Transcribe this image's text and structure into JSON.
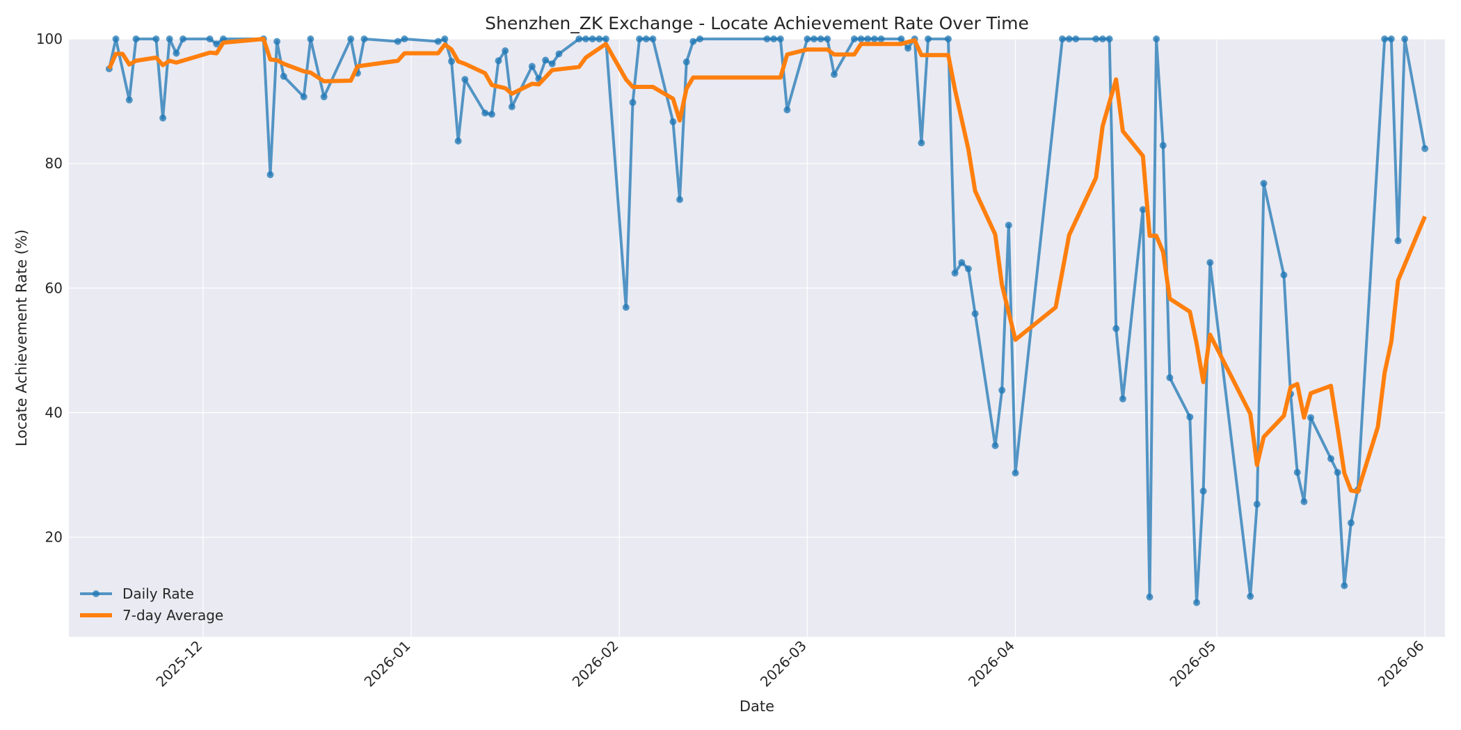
{
  "chart_data": {
    "type": "line",
    "title": "Shenzhen_ZK Exchange - Locate Achievement Rate Over Time",
    "xlabel": "Date",
    "ylabel": "Locate Achievement Rate (%)",
    "xlim": [
      "2025-11-11",
      "2026-06-04"
    ],
    "ylim": [
      4,
      100
    ],
    "x_ticks": [
      "2025-12-01",
      "2026-01-01",
      "2026-02-01",
      "2026-03-01",
      "2026-04-01",
      "2026-05-01",
      "2026-06-01"
    ],
    "x_tick_labels": [
      "2025-12",
      "2026-01",
      "2026-02",
      "2026-03",
      "2026-04",
      "2026-05",
      "2026-06"
    ],
    "y_ticks": [
      20,
      40,
      60,
      80,
      100
    ],
    "grid": true,
    "legend_position": "lower-left",
    "colors": {
      "background": "#eaeaf2",
      "grid": "#ffffff",
      "daily": "#1f77b4",
      "avg": "#ff7f0e"
    },
    "series": [
      {
        "name": "Daily Rate",
        "marker": "circle",
        "points": [
          [
            "2025-11-17",
            95.2
          ],
          [
            "2025-11-18",
            100
          ],
          [
            "2025-11-20",
            90.2
          ],
          [
            "2025-11-21",
            100
          ],
          [
            "2025-11-24",
            100
          ],
          [
            "2025-11-25",
            87.3
          ],
          [
            "2025-11-26",
            100
          ],
          [
            "2025-11-27",
            97.7
          ],
          [
            "2025-11-28",
            100
          ],
          [
            "2025-12-02",
            100
          ],
          [
            "2025-12-03",
            99.2
          ],
          [
            "2025-12-04",
            100
          ],
          [
            "2025-12-10",
            100
          ],
          [
            "2025-12-11",
            78.2
          ],
          [
            "2025-12-12",
            99.6
          ],
          [
            "2025-12-13",
            94
          ],
          [
            "2025-12-16",
            90.7
          ],
          [
            "2025-12-17",
            100
          ],
          [
            "2025-12-19",
            90.7
          ],
          [
            "2025-12-23",
            100
          ],
          [
            "2025-12-24",
            94.5
          ],
          [
            "2025-12-25",
            100
          ],
          [
            "2025-12-30",
            99.6
          ],
          [
            "2025-12-31",
            100
          ],
          [
            "2026-01-05",
            99.6
          ],
          [
            "2026-01-06",
            100
          ],
          [
            "2026-01-07",
            96.4
          ],
          [
            "2026-01-08",
            83.6
          ],
          [
            "2026-01-09",
            93.5
          ],
          [
            "2026-01-12",
            88.1
          ],
          [
            "2026-01-13",
            87.9
          ],
          [
            "2026-01-14",
            96.5
          ],
          [
            "2026-01-15",
            98.1
          ],
          [
            "2026-01-16",
            89.1
          ],
          [
            "2026-01-19",
            95.6
          ],
          [
            "2026-01-20",
            93.6
          ],
          [
            "2026-01-21",
            96.6
          ],
          [
            "2026-01-22",
            96
          ],
          [
            "2026-01-23",
            97.6
          ],
          [
            "2026-01-26",
            100
          ],
          [
            "2026-01-27",
            100
          ],
          [
            "2026-01-28",
            100
          ],
          [
            "2026-01-29",
            100
          ],
          [
            "2026-01-30",
            100
          ],
          [
            "2026-02-02",
            56.9
          ],
          [
            "2026-02-03",
            89.8
          ],
          [
            "2026-02-04",
            100
          ],
          [
            "2026-02-05",
            100
          ],
          [
            "2026-02-06",
            100
          ],
          [
            "2026-02-09",
            86.7
          ],
          [
            "2026-02-10",
            74.2
          ],
          [
            "2026-02-11",
            96.3
          ],
          [
            "2026-02-12",
            99.6
          ],
          [
            "2026-02-13",
            100
          ],
          [
            "2026-02-23",
            100
          ],
          [
            "2026-02-24",
            100
          ],
          [
            "2026-02-25",
            100
          ],
          [
            "2026-02-26",
            88.6
          ],
          [
            "2026-03-01",
            100
          ],
          [
            "2026-03-02",
            100
          ],
          [
            "2026-03-03",
            100
          ],
          [
            "2026-03-04",
            100
          ],
          [
            "2026-03-05",
            94.3
          ],
          [
            "2026-03-08",
            100
          ],
          [
            "2026-03-09",
            100
          ],
          [
            "2026-03-10",
            100
          ],
          [
            "2026-03-11",
            100
          ],
          [
            "2026-03-12",
            100
          ],
          [
            "2026-03-15",
            100
          ],
          [
            "2026-03-16",
            98.5
          ],
          [
            "2026-03-17",
            100
          ],
          [
            "2026-03-18",
            83.3
          ],
          [
            "2026-03-19",
            100
          ],
          [
            "2026-03-22",
            100
          ],
          [
            "2026-03-23",
            62.4
          ],
          [
            "2026-03-24",
            64.1
          ],
          [
            "2026-03-25",
            63.1
          ],
          [
            "2026-03-26",
            55.9
          ],
          [
            "2026-03-29",
            34.7
          ],
          [
            "2026-03-30",
            43.6
          ],
          [
            "2026-03-31",
            70.1
          ],
          [
            "2026-04-01",
            30.3
          ],
          [
            "2026-04-08",
            100
          ],
          [
            "2026-04-09",
            100
          ],
          [
            "2026-04-10",
            100
          ],
          [
            "2026-04-13",
            100
          ],
          [
            "2026-04-14",
            100
          ],
          [
            "2026-04-15",
            100
          ],
          [
            "2026-04-16",
            53.5
          ],
          [
            "2026-04-17",
            42.2
          ],
          [
            "2026-04-20",
            72.6
          ],
          [
            "2026-04-21",
            10.4
          ],
          [
            "2026-04-22",
            100
          ],
          [
            "2026-04-23",
            82.9
          ],
          [
            "2026-04-24",
            45.6
          ],
          [
            "2026-04-27",
            39.3
          ],
          [
            "2026-04-28",
            9.5
          ],
          [
            "2026-04-29",
            27.4
          ],
          [
            "2026-04-30",
            64.1
          ],
          [
            "2026-05-06",
            10.5
          ],
          [
            "2026-05-07",
            25.3
          ],
          [
            "2026-05-08",
            76.8
          ],
          [
            "2026-05-11",
            62.1
          ],
          [
            "2026-05-12",
            43
          ],
          [
            "2026-05-13",
            30.4
          ],
          [
            "2026-05-14",
            25.7
          ],
          [
            "2026-05-15",
            39.2
          ],
          [
            "2026-05-18",
            32.6
          ],
          [
            "2026-05-19",
            30.4
          ],
          [
            "2026-05-20",
            12.2
          ],
          [
            "2026-05-21",
            22.3
          ],
          [
            "2026-05-22",
            27.6
          ],
          [
            "2026-05-26",
            100
          ],
          [
            "2026-05-27",
            100
          ],
          [
            "2026-05-28",
            67.6
          ],
          [
            "2026-05-29",
            100
          ],
          [
            "2026-06-01",
            82.4
          ]
        ]
      },
      {
        "name": "7-day Average",
        "points": [
          [
            "2025-11-17",
            95.2
          ],
          [
            "2025-11-18",
            97.6
          ],
          [
            "2025-11-19",
            97.6
          ],
          [
            "2025-11-20",
            95.9
          ],
          [
            "2025-11-21",
            96.5
          ],
          [
            "2025-11-24",
            97
          ],
          [
            "2025-11-25",
            95.8
          ],
          [
            "2025-11-26",
            96.5
          ],
          [
            "2025-11-27",
            96.2
          ],
          [
            "2025-12-02",
            97.8
          ],
          [
            "2025-12-03",
            97.7
          ],
          [
            "2025-12-04",
            99.4
          ],
          [
            "2025-12-10",
            100
          ],
          [
            "2025-12-11",
            96.7
          ],
          [
            "2025-12-12",
            96.6
          ],
          [
            "2025-12-13",
            96
          ],
          [
            "2025-12-16",
            94.8
          ],
          [
            "2025-12-17",
            94.6
          ],
          [
            "2025-12-19",
            93.2
          ],
          [
            "2025-12-23",
            93.3
          ],
          [
            "2025-12-24",
            95.6
          ],
          [
            "2025-12-30",
            96.5
          ],
          [
            "2025-12-31",
            97.7
          ],
          [
            "2026-01-05",
            97.7
          ],
          [
            "2026-01-06",
            99.1
          ],
          [
            "2026-01-07",
            98.3
          ],
          [
            "2026-01-08",
            96.4
          ],
          [
            "2026-01-09",
            96
          ],
          [
            "2026-01-12",
            94.5
          ],
          [
            "2026-01-13",
            92.6
          ],
          [
            "2026-01-15",
            92.1
          ],
          [
            "2026-01-16",
            91.2
          ],
          [
            "2026-01-19",
            92.8
          ],
          [
            "2026-01-20",
            92.7
          ],
          [
            "2026-01-22",
            95
          ],
          [
            "2026-01-26",
            95.5
          ],
          [
            "2026-01-27",
            97
          ],
          [
            "2026-01-30",
            99.2
          ],
          [
            "2026-02-02",
            93.5
          ],
          [
            "2026-02-03",
            92.3
          ],
          [
            "2026-02-06",
            92.3
          ],
          [
            "2026-02-09",
            90.4
          ],
          [
            "2026-02-10",
            86.9
          ],
          [
            "2026-02-11",
            92
          ],
          [
            "2026-02-12",
            93.8
          ],
          [
            "2026-02-25",
            93.8
          ],
          [
            "2026-02-26",
            97.5
          ],
          [
            "2026-03-01",
            98.3
          ],
          [
            "2026-03-04",
            98.3
          ],
          [
            "2026-03-05",
            97.5
          ],
          [
            "2026-03-08",
            97.5
          ],
          [
            "2026-03-09",
            99.2
          ],
          [
            "2026-03-15",
            99.2
          ],
          [
            "2026-03-17",
            99.8
          ],
          [
            "2026-03-18",
            97.4
          ],
          [
            "2026-03-22",
            97.4
          ],
          [
            "2026-03-23",
            91.9
          ],
          [
            "2026-03-25",
            82.3
          ],
          [
            "2026-03-26",
            75.6
          ],
          [
            "2026-03-29",
            68.6
          ],
          [
            "2026-03-30",
            60.5
          ],
          [
            "2026-04-01",
            51.7
          ],
          [
            "2026-04-07",
            56.9
          ],
          [
            "2026-04-09",
            68.5
          ],
          [
            "2026-04-13",
            77.7
          ],
          [
            "2026-04-14",
            86
          ],
          [
            "2026-04-16",
            93.5
          ],
          [
            "2026-04-17",
            85.2
          ],
          [
            "2026-04-20",
            81.2
          ],
          [
            "2026-04-21",
            68.4
          ],
          [
            "2026-04-22",
            68.4
          ],
          [
            "2026-04-23",
            65.8
          ],
          [
            "2026-04-24",
            58.3
          ],
          [
            "2026-04-27",
            56.2
          ],
          [
            "2026-04-28",
            51.1
          ],
          [
            "2026-04-29",
            44.9
          ],
          [
            "2026-04-30",
            52.5
          ],
          [
            "2026-05-06",
            39.8
          ],
          [
            "2026-05-07",
            31.6
          ],
          [
            "2026-05-08",
            36.1
          ],
          [
            "2026-05-11",
            39.5
          ],
          [
            "2026-05-12",
            44.1
          ],
          [
            "2026-05-13",
            44.6
          ],
          [
            "2026-05-14",
            39.2
          ],
          [
            "2026-05-15",
            43.1
          ],
          [
            "2026-05-18",
            44.3
          ],
          [
            "2026-05-19",
            37.5
          ],
          [
            "2026-05-20",
            30.3
          ],
          [
            "2026-05-21",
            27.5
          ],
          [
            "2026-05-22",
            27.3
          ],
          [
            "2026-05-25",
            37.7
          ],
          [
            "2026-05-26",
            46.4
          ],
          [
            "2026-05-27",
            51.4
          ],
          [
            "2026-05-28",
            61.2
          ],
          [
            "2026-06-01",
            71.5
          ]
        ]
      }
    ]
  }
}
